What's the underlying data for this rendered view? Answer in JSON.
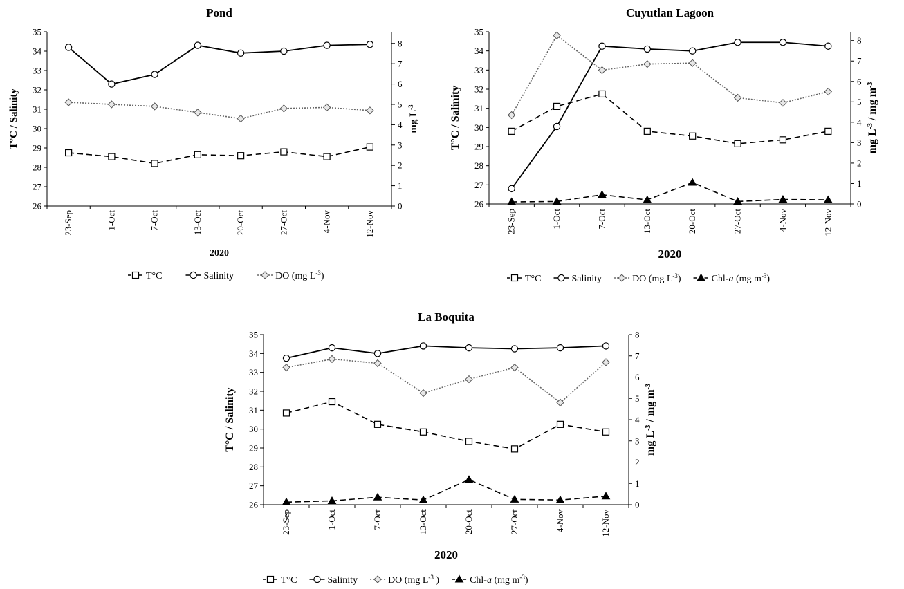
{
  "chart_data": [
    {
      "type": "line",
      "title": "Pond",
      "categories": [
        "23-Sep",
        "1-Oct",
        "7-Oct",
        "13-Oct",
        "20-Oct",
        "27-Oct",
        "4-Nov",
        "12-Nov"
      ],
      "xlabel": "2020",
      "ylabel_left_parts": [
        "T°C",
        "/",
        "Salinity"
      ],
      "ylabel_right_parts": [
        "mg L",
        "-3"
      ],
      "ylim_left": [
        26,
        35
      ],
      "ylim_right": [
        0,
        8.57
      ],
      "yticks_left": [
        26,
        27,
        28,
        29,
        30,
        31,
        32,
        33,
        34,
        35
      ],
      "yticks_right": [
        0,
        1,
        2,
        3,
        4,
        5,
        6,
        7,
        8
      ],
      "grid": false,
      "legend_position": "bottom",
      "series": [
        {
          "name": "T°C",
          "axis": "left",
          "style": "dashed",
          "marker": "square",
          "values": [
            28.75,
            28.55,
            28.2,
            28.65,
            28.6,
            28.8,
            28.55,
            29.05
          ]
        },
        {
          "name": "Salinity",
          "axis": "left",
          "style": "solid",
          "marker": "circle",
          "values": [
            34.2,
            32.3,
            32.8,
            34.3,
            33.9,
            34.0,
            34.3,
            34.35
          ]
        },
        {
          "name": "DO",
          "legend_text": "DO (mg L",
          "legend_sup": "-3",
          "legend_tail": ")",
          "axis": "right",
          "style": "dotted",
          "marker": "diamond",
          "values": [
            5.1,
            5.0,
            4.9,
            4.6,
            4.3,
            4.8,
            4.85,
            4.7
          ]
        }
      ]
    },
    {
      "type": "line",
      "title": "Cuyutlan Lagoon",
      "categories": [
        "23-Sep",
        "1-Oct",
        "7-Oct",
        "13-Oct",
        "20-Oct",
        "27-Oct",
        "4-Nov",
        "12-Nov"
      ],
      "xlabel": "2020",
      "ylabel_left_parts": [
        "T°C",
        "/",
        "Salinity"
      ],
      "ylabel_right_parts": [
        "mg L",
        "-3",
        "/",
        "mg m",
        "-3"
      ],
      "ylim_left": [
        26,
        35
      ],
      "ylim_right": [
        0,
        8.43
      ],
      "yticks_left": [
        26,
        27,
        28,
        29,
        30,
        31,
        32,
        33,
        34,
        35
      ],
      "yticks_right": [
        0,
        1,
        2,
        3,
        4,
        5,
        6,
        7,
        8
      ],
      "grid": false,
      "legend_position": "bottom",
      "series": [
        {
          "name": "T°C",
          "axis": "left",
          "style": "dashed",
          "marker": "square",
          "values": [
            29.8,
            31.1,
            31.75,
            29.8,
            29.55,
            29.15,
            29.35,
            29.8
          ]
        },
        {
          "name": "Salinity",
          "axis": "left",
          "style": "solid",
          "marker": "circle",
          "values": [
            26.8,
            30.05,
            34.25,
            34.1,
            34.0,
            34.45,
            34.45,
            34.25
          ]
        },
        {
          "name": "DO",
          "legend_text": "DO (mg L",
          "legend_sup": "-3",
          "legend_tail": ")",
          "axis": "right",
          "style": "dotted",
          "marker": "diamond",
          "values": [
            4.35,
            8.25,
            6.55,
            6.85,
            6.9,
            5.2,
            4.95,
            5.5
          ]
        },
        {
          "name": "Chl-a",
          "legend_text": "Chl-",
          "legend_italic": "a",
          "legend_mid": " (mg m",
          "legend_sup": "-3",
          "legend_tail": ")",
          "axis": "right",
          "style": "dashed",
          "marker": "triangle",
          "values": [
            0.1,
            0.12,
            0.45,
            0.2,
            1.05,
            0.12,
            0.22,
            0.2
          ]
        }
      ]
    },
    {
      "type": "line",
      "title": "La Boquita",
      "categories": [
        "23-Sep",
        "1-Oct",
        "7-Oct",
        "13-Oct",
        "20-Oct",
        "27-Oct",
        "4-Nov",
        "12-Nov"
      ],
      "xlabel": "2020",
      "ylabel_left_parts": [
        "T°C",
        "/",
        "Salinity"
      ],
      "ylabel_right_parts": [
        "mg L",
        "-3",
        "/",
        "mg m",
        "-3"
      ],
      "ylim_left": [
        26,
        35
      ],
      "ylim_right": [
        0,
        8
      ],
      "yticks_left": [
        26,
        27,
        28,
        29,
        30,
        31,
        32,
        33,
        34,
        35
      ],
      "yticks_right": [
        0,
        1,
        2,
        3,
        4,
        5,
        6,
        7,
        8
      ],
      "grid": false,
      "legend_position": "bottom",
      "series": [
        {
          "name": "T°C",
          "axis": "left",
          "style": "dashed",
          "marker": "square",
          "values": [
            30.85,
            31.45,
            30.25,
            29.85,
            29.35,
            28.95,
            30.25,
            29.85
          ]
        },
        {
          "name": "Salinity",
          "axis": "left",
          "style": "solid",
          "marker": "circle",
          "values": [
            33.75,
            34.3,
            34.0,
            34.4,
            34.3,
            34.25,
            34.3,
            34.4
          ]
        },
        {
          "name": "DO",
          "legend_text": "DO (mg L",
          "legend_sup": "-3",
          "legend_tail": " )",
          "axis": "right",
          "style": "dotted",
          "marker": "diamond",
          "values": [
            6.45,
            6.85,
            6.65,
            5.25,
            5.9,
            6.45,
            4.8,
            6.7
          ]
        },
        {
          "name": "Chl-a",
          "legend_text": "Chl-",
          "legend_italic": "a",
          "legend_mid": " (mg m",
          "legend_sup": "-3",
          "legend_tail": ")",
          "axis": "right",
          "style": "dashed",
          "marker": "triangle",
          "values": [
            0.12,
            0.18,
            0.35,
            0.22,
            1.18,
            0.25,
            0.22,
            0.4
          ]
        }
      ]
    }
  ]
}
